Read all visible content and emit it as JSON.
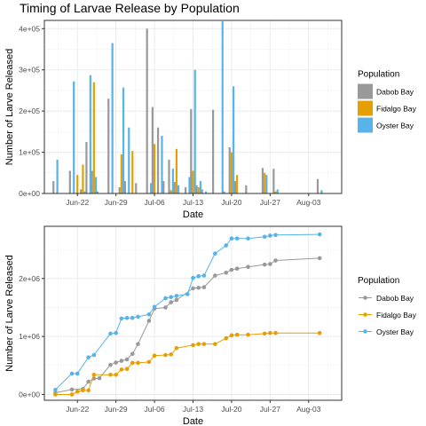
{
  "title": "Timing of Larvae Release by Population",
  "colors": {
    "Dabob Bay": "#999999",
    "Fidalgo Bay": "#E69F00",
    "Oyster Bay": "#56B4E9"
  },
  "chart_data": [
    {
      "type": "bar",
      "title": "Timing of Larvae Release by Population",
      "xlabel": "Date",
      "ylabel": "Number of Larve Released",
      "x_ticks": [
        "Jun-22",
        "Jun-29",
        "Jul-06",
        "Jul-13",
        "Jul-20",
        "Jul-27",
        "Aug-03"
      ],
      "y_ticks": [
        "0e+00",
        "1e+05",
        "2e+05",
        "3e+05",
        "4e+05"
      ],
      "xlim": [
        "2017-06-16",
        "2017-08-09"
      ],
      "ylim": [
        0,
        420000
      ],
      "grid": true,
      "legend": {
        "title": "Population",
        "placement": "right",
        "entries": [
          "Dabob Bay",
          "Fidalgo Bay",
          "Oyster Bay"
        ]
      },
      "series": [
        {
          "name": "Dabob Bay",
          "points": [
            [
              "2017-06-18",
              30000
            ],
            [
              "2017-06-21",
              55000
            ],
            [
              "2017-06-23",
              10000
            ],
            [
              "2017-06-24",
              125000
            ],
            [
              "2017-06-25",
              55000
            ],
            [
              "2017-06-26",
              5000
            ],
            [
              "2017-06-28",
              230000
            ],
            [
              "2017-06-30",
              15000
            ],
            [
              "2017-07-01",
              30000
            ],
            [
              "2017-07-03",
              25000
            ],
            [
              "2017-07-05",
              400000
            ],
            [
              "2017-07-06",
              210000
            ],
            [
              "2017-07-07",
              160000
            ],
            [
              "2017-07-08",
              30000
            ],
            [
              "2017-07-09",
              82000
            ],
            [
              "2017-07-10",
              28000
            ],
            [
              "2017-07-12",
              15000
            ],
            [
              "2017-07-13",
              205000
            ],
            [
              "2017-07-14",
              20000
            ],
            [
              "2017-07-15",
              10000
            ],
            [
              "2017-07-17",
              203000
            ],
            [
              "2017-07-19",
              5000
            ],
            [
              "2017-07-20",
              112000
            ],
            [
              "2017-07-21",
              30000
            ],
            [
              "2017-07-23",
              20000
            ],
            [
              "2017-07-26",
              62000
            ],
            [
              "2017-07-28",
              60000
            ],
            [
              "2017-08-05",
              35000
            ]
          ]
        },
        {
          "name": "Fidalgo Bay",
          "points": [
            [
              "2017-06-22",
              45000
            ],
            [
              "2017-06-23",
              70000
            ],
            [
              "2017-06-25",
              270000
            ],
            [
              "2017-06-30",
              95000
            ],
            [
              "2017-07-02",
              103000
            ],
            [
              "2017-07-06",
              120000
            ],
            [
              "2017-07-09",
              8000
            ],
            [
              "2017-07-10",
              108000
            ],
            [
              "2017-07-13",
              55000
            ],
            [
              "2017-07-14",
              15000
            ],
            [
              "2017-07-20",
              100000
            ],
            [
              "2017-07-21",
              45000
            ],
            [
              "2017-07-26",
              50000
            ],
            [
              "2017-07-28",
              5000
            ]
          ]
        },
        {
          "name": "Oyster Bay",
          "points": [
            [
              "2017-06-18",
              82000
            ],
            [
              "2017-06-21",
              272000
            ],
            [
              "2017-06-23",
              5000
            ],
            [
              "2017-06-24",
              287000
            ],
            [
              "2017-06-25",
              40000
            ],
            [
              "2017-06-28",
              365000
            ],
            [
              "2017-06-30",
              257000
            ],
            [
              "2017-07-01",
              160000
            ],
            [
              "2017-07-05",
              25000
            ],
            [
              "2017-07-07",
              140000
            ],
            [
              "2017-07-09",
              60000
            ],
            [
              "2017-07-10",
              20000
            ],
            [
              "2017-07-12",
              40000
            ],
            [
              "2017-07-13",
              300000
            ],
            [
              "2017-07-14",
              30000
            ],
            [
              "2017-07-15",
              5000
            ],
            [
              "2017-07-18",
              418000
            ],
            [
              "2017-07-20",
              260000
            ],
            [
              "2017-07-26",
              45000
            ],
            [
              "2017-07-28",
              10000
            ],
            [
              "2017-08-05",
              8000
            ]
          ]
        }
      ]
    },
    {
      "type": "line",
      "title": "",
      "xlabel": "Date",
      "ylabel": "Number of Larve Released",
      "x_ticks": [
        "Jun-22",
        "Jun-29",
        "Jul-06",
        "Jul-13",
        "Jul-20",
        "Jul-27",
        "Aug-03"
      ],
      "y_ticks": [
        "0e+00",
        "1e+06",
        "2e+06"
      ],
      "xlim": [
        "2017-06-16",
        "2017-08-09"
      ],
      "ylim": [
        -100000,
        2900000
      ],
      "grid": true,
      "legend": {
        "title": "Population",
        "placement": "right",
        "entries": [
          "Dabob Bay",
          "Fidalgo Bay",
          "Oyster Bay"
        ]
      },
      "series": [
        {
          "name": "Dabob Bay",
          "points": [
            [
              "2017-06-18",
              30000
            ],
            [
              "2017-06-21",
              85000
            ],
            [
              "2017-06-23",
              95000
            ],
            [
              "2017-06-24",
              220000
            ],
            [
              "2017-06-25",
              275000
            ],
            [
              "2017-06-26",
              280000
            ],
            [
              "2017-06-28",
              510000
            ],
            [
              "2017-06-29",
              550000
            ],
            [
              "2017-06-30",
              580000
            ],
            [
              "2017-07-01",
              605000
            ],
            [
              "2017-07-02",
              700000
            ],
            [
              "2017-07-03",
              870000
            ],
            [
              "2017-07-05",
              1270000
            ],
            [
              "2017-07-06",
              1480000
            ],
            [
              "2017-07-08",
              1500000
            ],
            [
              "2017-07-09",
              1590000
            ],
            [
              "2017-07-10",
              1630000
            ],
            [
              "2017-07-13",
              1830000
            ],
            [
              "2017-07-14",
              1840000
            ],
            [
              "2017-07-15",
              1850000
            ],
            [
              "2017-07-17",
              2050000
            ],
            [
              "2017-07-19",
              2100000
            ],
            [
              "2017-07-20",
              2150000
            ],
            [
              "2017-07-21",
              2170000
            ],
            [
              "2017-07-23",
              2200000
            ],
            [
              "2017-07-26",
              2240000
            ],
            [
              "2017-07-27",
              2250000
            ],
            [
              "2017-07-28",
              2310000
            ],
            [
              "2017-08-05",
              2350000
            ]
          ]
        },
        {
          "name": "Fidalgo Bay",
          "points": [
            [
              "2017-06-18",
              0
            ],
            [
              "2017-06-21",
              0
            ],
            [
              "2017-06-22",
              50000
            ],
            [
              "2017-06-23",
              70000
            ],
            [
              "2017-06-24",
              70000
            ],
            [
              "2017-06-25",
              340000
            ],
            [
              "2017-06-28",
              340000
            ],
            [
              "2017-06-29",
              340000
            ],
            [
              "2017-06-30",
              430000
            ],
            [
              "2017-07-01",
              440000
            ],
            [
              "2017-07-02",
              545000
            ],
            [
              "2017-07-03",
              545000
            ],
            [
              "2017-07-05",
              560000
            ],
            [
              "2017-07-06",
              670000
            ],
            [
              "2017-07-08",
              680000
            ],
            [
              "2017-07-09",
              690000
            ],
            [
              "2017-07-10",
              800000
            ],
            [
              "2017-07-13",
              850000
            ],
            [
              "2017-07-14",
              870000
            ],
            [
              "2017-07-15",
              870000
            ],
            [
              "2017-07-17",
              870000
            ],
            [
              "2017-07-19",
              970000
            ],
            [
              "2017-07-20",
              1020000
            ],
            [
              "2017-07-21",
              1030000
            ],
            [
              "2017-07-23",
              1030000
            ],
            [
              "2017-07-26",
              1050000
            ],
            [
              "2017-07-27",
              1060000
            ],
            [
              "2017-07-28",
              1060000
            ],
            [
              "2017-08-05",
              1060000
            ]
          ]
        },
        {
          "name": "Oyster Bay",
          "points": [
            [
              "2017-06-18",
              80000
            ],
            [
              "2017-06-21",
              360000
            ],
            [
              "2017-06-22",
              360000
            ],
            [
              "2017-06-24",
              640000
            ],
            [
              "2017-06-25",
              680000
            ],
            [
              "2017-06-28",
              1050000
            ],
            [
              "2017-06-29",
              1060000
            ],
            [
              "2017-06-30",
              1310000
            ],
            [
              "2017-07-01",
              1320000
            ],
            [
              "2017-07-02",
              1320000
            ],
            [
              "2017-07-03",
              1340000
            ],
            [
              "2017-07-05",
              1380000
            ],
            [
              "2017-07-06",
              1510000
            ],
            [
              "2017-07-08",
              1660000
            ],
            [
              "2017-07-09",
              1680000
            ],
            [
              "2017-07-10",
              1700000
            ],
            [
              "2017-07-12",
              1730000
            ],
            [
              "2017-07-13",
              2010000
            ],
            [
              "2017-07-14",
              2040000
            ],
            [
              "2017-07-15",
              2050000
            ],
            [
              "2017-07-17",
              2430000
            ],
            [
              "2017-07-19",
              2570000
            ],
            [
              "2017-07-20",
              2690000
            ],
            [
              "2017-07-21",
              2690000
            ],
            [
              "2017-07-23",
              2690000
            ],
            [
              "2017-07-26",
              2720000
            ],
            [
              "2017-07-27",
              2740000
            ],
            [
              "2017-07-28",
              2750000
            ],
            [
              "2017-08-05",
              2760000
            ]
          ]
        }
      ]
    }
  ]
}
